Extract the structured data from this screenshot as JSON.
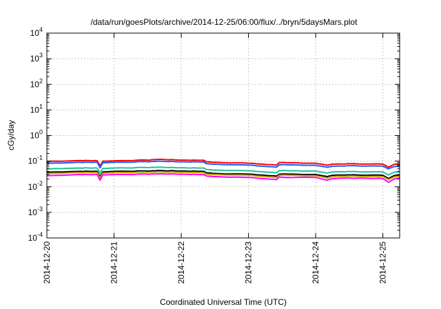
{
  "chart_data": {
    "type": "line",
    "title": "/data/run/goesPlots/archive/2014-12-25/06:00/flux/../bryn/5daysMars.plot",
    "xlabel": "Coordinated Universal Time (UTC)",
    "ylabel": "cGy/day",
    "yscale": "log",
    "xlim": [
      "2014-12-20",
      "2014-12-25T06:00"
    ],
    "ylim": [
      0.0001,
      10000
    ],
    "grid": true,
    "legend": "none",
    "x_ticks": [
      "2014-12-20",
      "2014-12-21",
      "2014-12-22",
      "2014-12-23",
      "2014-12-24",
      "2014-12-25"
    ],
    "y_ticks": [
      {
        "value": 0.0001,
        "base": "10",
        "exp": "-4"
      },
      {
        "value": 0.001,
        "base": "10",
        "exp": "-3"
      },
      {
        "value": 0.01,
        "base": "10",
        "exp": "-2"
      },
      {
        "value": 0.1,
        "base": "10",
        "exp": "-1"
      },
      {
        "value": 1,
        "base": "10",
        "exp": "0"
      },
      {
        "value": 10,
        "base": "10",
        "exp": "1"
      },
      {
        "value": 100,
        "base": "10",
        "exp": "2"
      },
      {
        "value": 1000,
        "base": "10",
        "exp": "3"
      },
      {
        "value": 10000,
        "base": "10",
        "exp": "4"
      }
    ],
    "x": [
      "2014-12-20T00:00",
      "2014-12-20T12:00",
      "2014-12-20T18:00",
      "2014-12-20T19:00",
      "2014-12-20T20:00",
      "2014-12-21T00:00",
      "2014-12-21T12:00",
      "2014-12-21T16:00",
      "2014-12-22T00:00",
      "2014-12-22T08:00",
      "2014-12-22T09:00",
      "2014-12-22T12:00",
      "2014-12-23T00:00",
      "2014-12-23T10:00",
      "2014-12-23T11:00",
      "2014-12-23T14:00",
      "2014-12-24T00:00",
      "2014-12-24T04:00",
      "2014-12-24T06:00",
      "2014-12-24T12:00",
      "2014-12-25T00:00",
      "2014-12-25T02:00",
      "2014-12-25T04:00",
      "2014-12-25T06:00"
    ],
    "series": [
      {
        "color": "#ff0000",
        "values": [
          0.098,
          0.105,
          0.104,
          0.065,
          0.1,
          0.103,
          0.11,
          0.118,
          0.11,
          0.108,
          0.094,
          0.09,
          0.083,
          0.07,
          0.088,
          0.086,
          0.083,
          0.07,
          0.076,
          0.079,
          0.077,
          0.058,
          0.075,
          0.078
        ]
      },
      {
        "color": "#1e5aff",
        "values": [
          0.082,
          0.09,
          0.09,
          0.055,
          0.087,
          0.09,
          0.095,
          0.1,
          0.094,
          0.093,
          0.079,
          0.076,
          0.07,
          0.058,
          0.072,
          0.071,
          0.069,
          0.058,
          0.063,
          0.066,
          0.064,
          0.05,
          0.062,
          0.066
        ]
      },
      {
        "color": "#1fc49a",
        "values": [
          0.05,
          0.054,
          0.054,
          0.035,
          0.052,
          0.054,
          0.056,
          0.058,
          0.055,
          0.054,
          0.047,
          0.045,
          0.042,
          0.035,
          0.043,
          0.042,
          0.041,
          0.034,
          0.038,
          0.039,
          0.038,
          0.029,
          0.037,
          0.039
        ]
      },
      {
        "color": "#000000",
        "values": [
          0.037,
          0.04,
          0.04,
          0.025,
          0.038,
          0.04,
          0.041,
          0.043,
          0.041,
          0.04,
          0.035,
          0.033,
          0.031,
          0.026,
          0.031,
          0.031,
          0.03,
          0.025,
          0.028,
          0.029,
          0.028,
          0.021,
          0.027,
          0.029
        ]
      },
      {
        "color": "#c8a000",
        "values": [
          0.033,
          0.036,
          0.036,
          0.022,
          0.034,
          0.036,
          0.037,
          0.038,
          0.037,
          0.036,
          0.031,
          0.03,
          0.028,
          0.023,
          0.028,
          0.028,
          0.027,
          0.022,
          0.025,
          0.026,
          0.025,
          0.019,
          0.024,
          0.026
        ]
      },
      {
        "color": "#ff00ff",
        "values": [
          0.027,
          0.03,
          0.03,
          0.018,
          0.029,
          0.03,
          0.031,
          0.032,
          0.031,
          0.03,
          0.026,
          0.025,
          0.023,
          0.019,
          0.024,
          0.023,
          0.023,
          0.018,
          0.021,
          0.022,
          0.021,
          0.015,
          0.02,
          0.022
        ]
      }
    ]
  }
}
